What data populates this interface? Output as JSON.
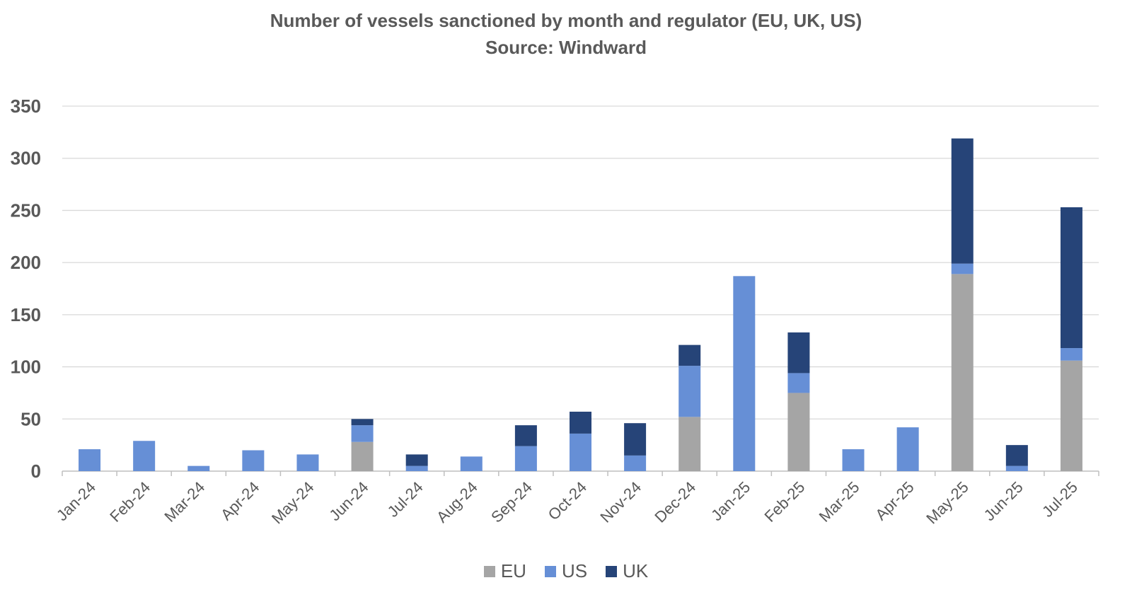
{
  "chart_data": {
    "type": "bar",
    "stacked": true,
    "title": "Number of vessels sanctioned by month and regulator (EU, UK, US)",
    "subtitle": "Source: Windward",
    "xlabel": "",
    "ylabel": "",
    "ylim": [
      0,
      350
    ],
    "yticks": [
      "0",
      "50",
      "100",
      "150",
      "200",
      "250",
      "300",
      "350"
    ],
    "grid": true,
    "legend_position": "bottom",
    "categories": [
      "Jan-24",
      "Feb-24",
      "Mar-24",
      "Apr-24",
      "May-24",
      "Jun-24",
      "Jul-24",
      "Aug-24",
      "Sep-24",
      "Oct-24",
      "Nov-24",
      "Dec-24",
      "Jan-25",
      "Feb-25",
      "Mar-25",
      "Apr-25",
      "May-25",
      "Jun-25",
      "Jul-25"
    ],
    "series": [
      {
        "name": "EU",
        "color": "#A5A5A5",
        "values": [
          0,
          0,
          0,
          0,
          0,
          28,
          0,
          0,
          0,
          0,
          0,
          52,
          0,
          75,
          0,
          0,
          189,
          0,
          106
        ]
      },
      {
        "name": "US",
        "color": "#668FD6",
        "values": [
          21,
          29,
          5,
          20,
          16,
          16,
          5,
          14,
          24,
          36,
          15,
          49,
          187,
          19,
          21,
          42,
          10,
          5,
          12
        ]
      },
      {
        "name": "UK",
        "color": "#264478",
        "values": [
          0,
          0,
          0,
          0,
          0,
          6,
          11,
          0,
          20,
          21,
          31,
          20,
          0,
          39,
          0,
          0,
          120,
          20,
          135
        ]
      }
    ]
  }
}
